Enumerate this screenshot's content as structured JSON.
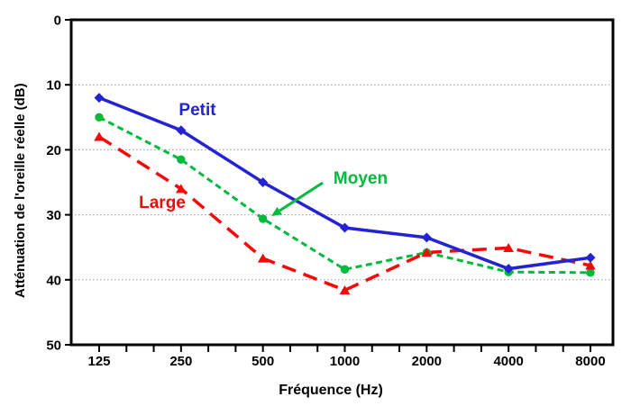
{
  "chart_data": {
    "type": "line",
    "title": "",
    "xlabel": "Fréquence (Hz)",
    "ylabel": "Atténuation de l'oreille réelle (dB)",
    "x": [
      125,
      250,
      500,
      1000,
      2000,
      4000,
      8000
    ],
    "x_tick_labels": [
      "125",
      "250",
      "500",
      "1000",
      "2000",
      "4000",
      "8000"
    ],
    "x_scale": "log-octave, minor ticks at 1/3 octave",
    "y_ticks": [
      0,
      10,
      20,
      30,
      40,
      50
    ],
    "ylim": [
      0,
      50
    ],
    "y_axis_inverted": true,
    "grid": "horizontal dotted gridlines at 10, 20, 30, 40",
    "legend_position": "inline colored labels near lines",
    "series": [
      {
        "name": "Petit",
        "color": "#2323D3",
        "line_style": "solid",
        "marker": "diamond",
        "values": [
          12,
          17,
          25,
          32,
          33.5,
          38.3,
          36.6
        ]
      },
      {
        "name": "Moyen",
        "color": "#00BA3C",
        "line_style": "short-dash",
        "marker": "circle",
        "values": [
          15,
          21.5,
          30.6,
          38.4,
          35.8,
          38.8,
          38.9
        ]
      },
      {
        "name": "Large",
        "color": "#F60808",
        "line_style": "long-dash",
        "marker": "triangle-up",
        "values": [
          18,
          26,
          36.7,
          41.6,
          35.8,
          35.1,
          37.8
        ]
      }
    ],
    "annotations": [
      {
        "text": "Petit",
        "series": "Petit"
      },
      {
        "text": "Moyen",
        "series": "Moyen",
        "arrow_points_to": "Moyen value at 500 Hz"
      },
      {
        "text": "Large",
        "series": "Large"
      }
    ]
  }
}
